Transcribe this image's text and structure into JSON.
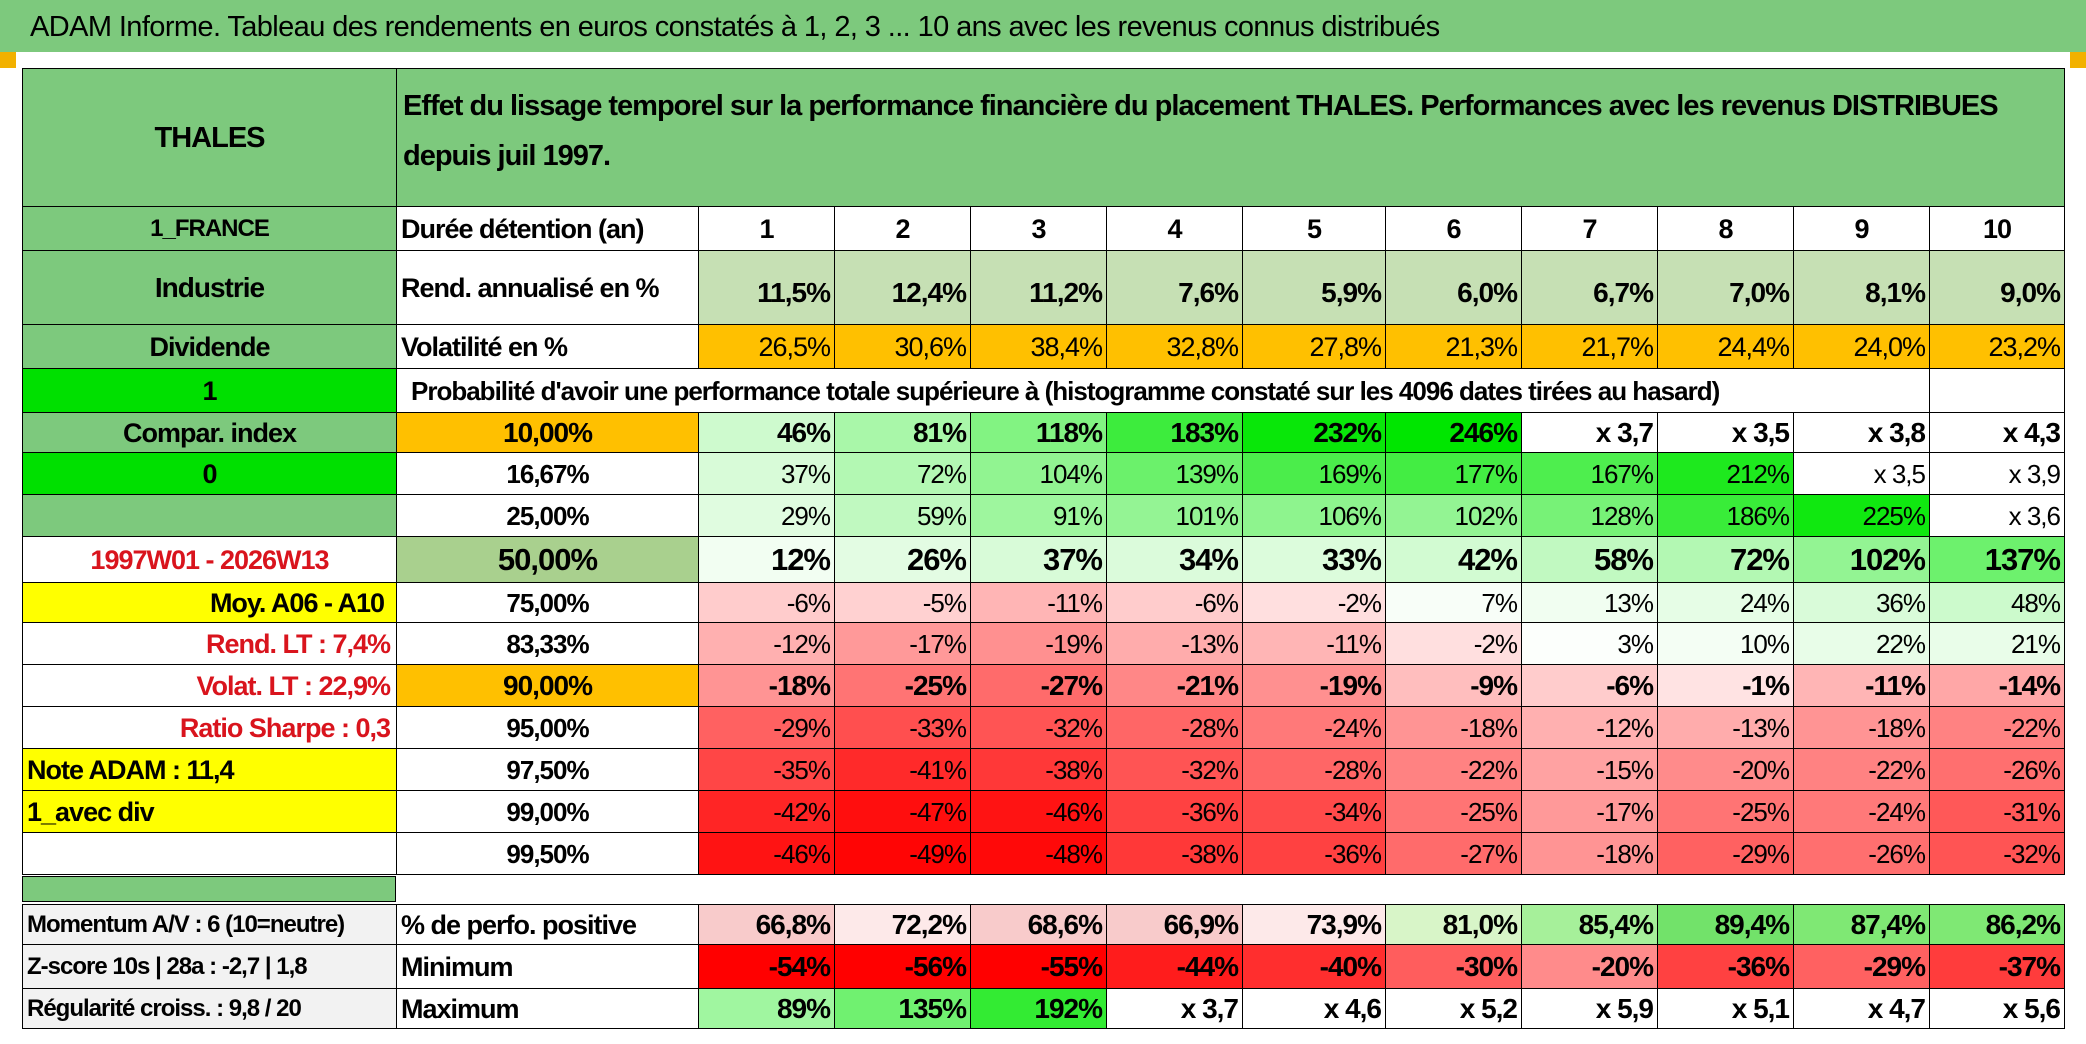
{
  "title": "ADAM Informe. Tableau des rendements en euros constatés à 1, 2, 3 ... 10 ans avec les revenus connus distribués",
  "header": {
    "stock": "THALES",
    "description": "Effet du lissage temporel sur la performance financière du placement THALES. Performances avec les revenus DISTRIBUES depuis juil 1997."
  },
  "left_panel": {
    "market": "1_FRANCE",
    "sector": "Industrie",
    "dividend": "Dividende",
    "flag1": "1",
    "compar_index": "Compar. index",
    "flag0": "0",
    "period": "1997W01 - 2026W13",
    "moy": "Moy. A06 - A10",
    "rend_lt": "Rend. LT :   7,4%",
    "volat_lt": "Volat. LT :   22,9%",
    "sharpe": "Ratio Sharpe :    0,3",
    "note": "Note ADAM : 11,4",
    "avec_div": "1_avec div",
    "momentum": "Momentum A/V : 6 (10=neutre)",
    "zscore": "Z-score 10s | 28a : -2,7 | 1,8",
    "regularite": "Régularité croiss. : 9,8 / 20"
  },
  "years_label": "Durée détention (an)",
  "years": [
    "1",
    "2",
    "3",
    "4",
    "5",
    "6",
    "7",
    "8",
    "9",
    "10"
  ],
  "rend_label": "Rend. annualisé en %",
  "rend": [
    "11,5%",
    "12,4%",
    "11,2%",
    "7,6%",
    "5,9%",
    "6,0%",
    "6,7%",
    "7,0%",
    "8,1%",
    "9,0%"
  ],
  "vol_label": "Volatilité en %",
  "vol": [
    "26,5%",
    "30,6%",
    "38,4%",
    "32,8%",
    "27,8%",
    "21,3%",
    "21,7%",
    "24,4%",
    "24,0%",
    "23,2%"
  ],
  "prob_header": "Probabilité d'avoir une performance totale supérieure à (histogramme constaté sur les 4096 dates tirées au hasard)",
  "prob_rows": [
    {
      "pct": "10,00%",
      "vals": [
        "46%",
        "81%",
        "118%",
        "183%",
        "232%",
        "246%",
        "x 3,7",
        "x 3,5",
        "x 3,8",
        "x 4,3"
      ]
    },
    {
      "pct": "16,67%",
      "vals": [
        "37%",
        "72%",
        "104%",
        "139%",
        "169%",
        "177%",
        "167%",
        "212%",
        "x 3,5",
        "x 3,9"
      ]
    },
    {
      "pct": "25,00%",
      "vals": [
        "29%",
        "59%",
        "91%",
        "101%",
        "106%",
        "102%",
        "128%",
        "186%",
        "225%",
        "x 3,6"
      ]
    },
    {
      "pct": "50,00%",
      "vals": [
        "12%",
        "26%",
        "37%",
        "34%",
        "33%",
        "42%",
        "58%",
        "72%",
        "102%",
        "137%"
      ]
    },
    {
      "pct": "75,00%",
      "vals": [
        "-6%",
        "-5%",
        "-11%",
        "-6%",
        "-2%",
        "7%",
        "13%",
        "24%",
        "36%",
        "48%"
      ]
    },
    {
      "pct": "83,33%",
      "vals": [
        "-12%",
        "-17%",
        "-19%",
        "-13%",
        "-11%",
        "-2%",
        "3%",
        "10%",
        "22%",
        "21%"
      ]
    },
    {
      "pct": "90,00%",
      "vals": [
        "-18%",
        "-25%",
        "-27%",
        "-21%",
        "-19%",
        "-9%",
        "-6%",
        "-1%",
        "-11%",
        "-14%"
      ]
    },
    {
      "pct": "95,00%",
      "vals": [
        "-29%",
        "-33%",
        "-32%",
        "-28%",
        "-24%",
        "-18%",
        "-12%",
        "-13%",
        "-18%",
        "-22%"
      ]
    },
    {
      "pct": "97,50%",
      "vals": [
        "-35%",
        "-41%",
        "-38%",
        "-32%",
        "-28%",
        "-22%",
        "-15%",
        "-20%",
        "-22%",
        "-26%"
      ]
    },
    {
      "pct": "99,00%",
      "vals": [
        "-42%",
        "-47%",
        "-46%",
        "-36%",
        "-34%",
        "-25%",
        "-17%",
        "-25%",
        "-24%",
        "-31%"
      ]
    },
    {
      "pct": "99,50%",
      "vals": [
        "-46%",
        "-49%",
        "-48%",
        "-38%",
        "-36%",
        "-27%",
        "-18%",
        "-29%",
        "-26%",
        "-32%"
      ]
    }
  ],
  "pos_label": "% de perfo. positive",
  "pos": [
    "66,8%",
    "72,2%",
    "68,6%",
    "66,9%",
    "73,9%",
    "81,0%",
    "85,4%",
    "89,4%",
    "87,4%",
    "86,2%"
  ],
  "min_label": "Minimum",
  "min": [
    "-54%",
    "-56%",
    "-55%",
    "-44%",
    "-40%",
    "-30%",
    "-20%",
    "-36%",
    "-29%",
    "-37%"
  ],
  "max_label": "Maximum",
  "max": [
    "89%",
    "135%",
    "192%",
    "x 3,7",
    "x 4,6",
    "x 5,2",
    "x 5,9",
    "x 5,1",
    "x 4,7",
    "x 5,6"
  ],
  "colors": {
    "title_green": "#7dc97d",
    "bright_green": "#00e000",
    "orange": "#ffc000",
    "yellow": "#ffff00",
    "rend_green": "#c6e0b4"
  }
}
